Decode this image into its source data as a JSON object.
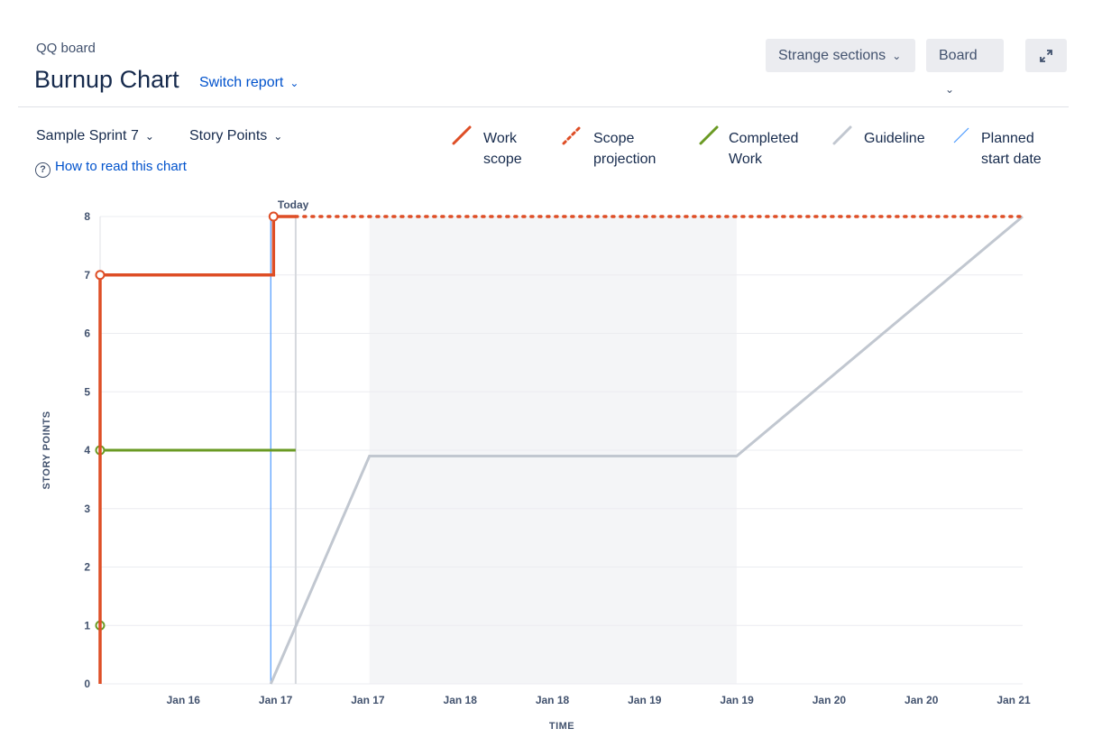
{
  "header": {
    "board_name": "QQ board",
    "title": "Burnup Chart",
    "switch_report": "Switch report",
    "sections_button": "Strange sections",
    "board_button": "Board",
    "expand_icon": "expand-icon"
  },
  "controls": {
    "sprint": "Sample Sprint 7",
    "estimation": "Story Points",
    "help_link": "How to read this chart",
    "help_icon": "question-circle-icon"
  },
  "legend": [
    {
      "line1": "Work",
      "line2": "scope",
      "color": "#de4e26",
      "style": "solid"
    },
    {
      "line1": "Scope",
      "line2": "projection",
      "color": "#de4e26",
      "style": "dotted"
    },
    {
      "line1": "Completed",
      "line2": "Work",
      "color": "#6a9a23",
      "style": "solid"
    },
    {
      "line1": "Guideline",
      "line2": "",
      "color": "#c1c7d0",
      "style": "solid"
    },
    {
      "line1": "Planned",
      "line2": "start date",
      "color": "#4c9aff",
      "style": "thin"
    }
  ],
  "chart_data": {
    "type": "line",
    "xlabel": "TIME",
    "ylabel": "STORY POINTS",
    "ylim": [
      0,
      8
    ],
    "y_ticks": [
      0,
      1,
      2,
      3,
      4,
      5,
      6,
      7,
      8
    ],
    "x_tick_labels": [
      "Jan 16",
      "Jan 17",
      "Jan 17",
      "Jan 18",
      "Jan 18",
      "Jan 19",
      "Jan 19",
      "Jan 20",
      "Jan 20",
      "Jan 21"
    ],
    "today_label": "Today",
    "series": [
      {
        "name": "Work scope",
        "color": "#de4e26",
        "points": [
          [
            0,
            0
          ],
          [
            0,
            7
          ],
          [
            1.88,
            7
          ],
          [
            1.88,
            8
          ],
          [
            2.12,
            8
          ]
        ],
        "markers": [
          [
            0,
            7
          ],
          [
            1.88,
            8
          ]
        ]
      },
      {
        "name": "Scope projection",
        "color": "#de4e26",
        "points": [
          [
            2.12,
            8
          ],
          [
            10,
            8
          ]
        ]
      },
      {
        "name": "Completed Work",
        "color": "#6a9a23",
        "points": [
          [
            0,
            0
          ],
          [
            0,
            1
          ],
          [
            0,
            4
          ],
          [
            2.12,
            4
          ]
        ],
        "markers": [
          [
            0,
            1
          ],
          [
            0,
            4
          ]
        ]
      },
      {
        "name": "Guideline",
        "color": "#c1c7d0",
        "points": [
          [
            1.85,
            0
          ],
          [
            2.92,
            3.9
          ],
          [
            6.9,
            3.9
          ],
          [
            10,
            8
          ]
        ]
      }
    ],
    "planned_start": 1.85,
    "today": 2.12,
    "non_working": [
      2.92,
      6.9
    ]
  }
}
